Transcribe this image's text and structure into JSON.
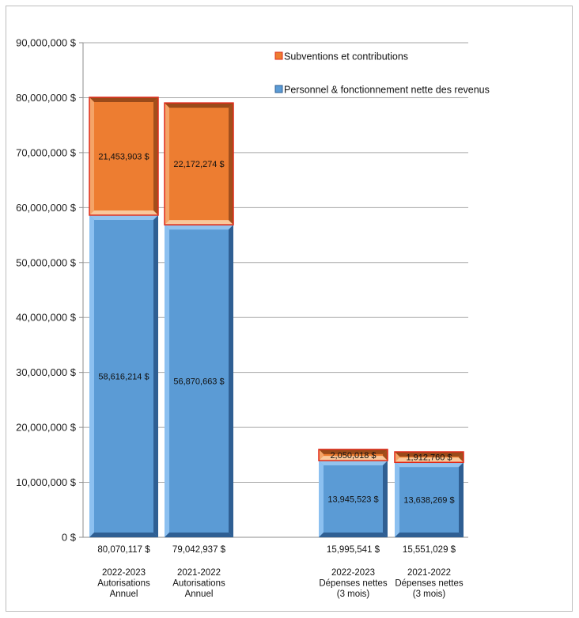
{
  "chart_data": {
    "type": "bar",
    "stacked": true,
    "categories": [
      [
        "2022-2023",
        "Autorisations",
        "Annuel"
      ],
      [
        "2021-2022",
        "Autorisations",
        "Annuel"
      ],
      [
        "2022-2023",
        "Dépenses nettes",
        "(3 mois)"
      ],
      [
        "2021-2022",
        "Dépenses nettes",
        "(3 mois)"
      ]
    ],
    "series": [
      {
        "name": "Personnel & fonctionnement nette des revenus",
        "color": "#5b9bd5",
        "values": [
          58616214,
          56870663,
          13945523,
          13638269
        ],
        "labels": [
          "58,616,214 $",
          "56,870,663 $",
          "13,945,523 $",
          "13,638,269 $"
        ]
      },
      {
        "name": "Subventions et contributions",
        "color": "#ed7d31",
        "values": [
          21453903,
          22172274,
          2050018,
          1912760
        ],
        "labels": [
          "21,453,903 $",
          "22,172,274 $",
          "2,050,018 $",
          "1,912,760 $"
        ]
      }
    ],
    "totals": [
      "80,070,117 $",
      "79,042,937 $",
      "15,995,541 $",
      "15,551,029 $"
    ],
    "y_ticks": [
      "0 $",
      "10,000,000 $",
      "20,000,000 $",
      "30,000,000 $",
      "40,000,000 $",
      "50,000,000 $",
      "60,000,000 $",
      "70,000,000 $",
      "80,000,000 $",
      "90,000,000 $"
    ],
    "ylim": [
      0,
      90000000
    ],
    "grid": true,
    "legend_position": "top-right"
  }
}
